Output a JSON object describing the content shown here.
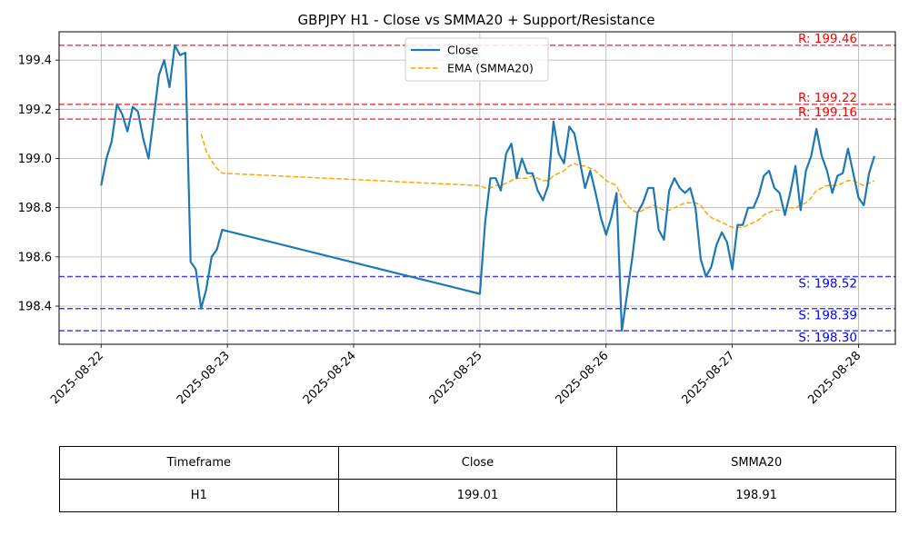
{
  "chart_data": {
    "type": "line",
    "title": "GBPJPY H1 - Close vs SMMA20 + Support/Resistance",
    "xlabel": "",
    "ylabel": "",
    "x_ticks": [
      "2025-08-22",
      "2025-08-23",
      "2025-08-24",
      "2025-08-25",
      "2025-08-26",
      "2025-08-27",
      "2025-08-28"
    ],
    "y_ticks": [
      198.4,
      198.6,
      198.8,
      199.0,
      199.2,
      199.4
    ],
    "xlim": [
      "2025-08-21 16:00",
      "2025-08-28 07:00"
    ],
    "ylim": [
      198.245,
      199.515
    ],
    "grid": true,
    "legend_position": "top-center",
    "colors": {
      "close": "#1f77b4",
      "ema": "#ffa500",
      "resistance": "#ff0000",
      "support": "#0000ff"
    },
    "series": [
      {
        "name": "Close",
        "style": "solid",
        "points": [
          [
            "2025-08-22 00:00",
            198.89
          ],
          [
            "2025-08-22 01:00",
            199.0
          ],
          [
            "2025-08-22 02:00",
            199.07
          ],
          [
            "2025-08-22 03:00",
            199.22
          ],
          [
            "2025-08-22 04:00",
            199.18
          ],
          [
            "2025-08-22 05:00",
            199.11
          ],
          [
            "2025-08-22 06:00",
            199.21
          ],
          [
            "2025-08-22 07:00",
            199.19
          ],
          [
            "2025-08-22 08:00",
            199.08
          ],
          [
            "2025-08-22 09:00",
            199.0
          ],
          [
            "2025-08-22 10:00",
            199.17
          ],
          [
            "2025-08-22 11:00",
            199.34
          ],
          [
            "2025-08-22 12:00",
            199.4
          ],
          [
            "2025-08-22 13:00",
            199.29
          ],
          [
            "2025-08-22 14:00",
            199.46
          ],
          [
            "2025-08-22 15:00",
            199.42
          ],
          [
            "2025-08-22 16:00",
            199.43
          ],
          [
            "2025-08-22 17:00",
            198.58
          ],
          [
            "2025-08-22 18:00",
            198.55
          ],
          [
            "2025-08-22 19:00",
            198.39
          ],
          [
            "2025-08-22 20:00",
            198.47
          ],
          [
            "2025-08-22 21:00",
            198.6
          ],
          [
            "2025-08-22 22:00",
            198.63
          ],
          [
            "2025-08-22 23:00",
            198.71
          ],
          [
            "2025-08-25 00:00",
            198.45
          ],
          [
            "2025-08-25 01:00",
            198.74
          ],
          [
            "2025-08-25 02:00",
            198.92
          ],
          [
            "2025-08-25 03:00",
            198.92
          ],
          [
            "2025-08-25 04:00",
            198.87
          ],
          [
            "2025-08-25 05:00",
            199.02
          ],
          [
            "2025-08-25 06:00",
            199.06
          ],
          [
            "2025-08-25 07:00",
            198.92
          ],
          [
            "2025-08-25 08:00",
            199.0
          ],
          [
            "2025-08-25 09:00",
            198.94
          ],
          [
            "2025-08-25 10:00",
            198.94
          ],
          [
            "2025-08-25 11:00",
            198.87
          ],
          [
            "2025-08-25 12:00",
            198.83
          ],
          [
            "2025-08-25 13:00",
            198.89
          ],
          [
            "2025-08-25 14:00",
            199.15
          ],
          [
            "2025-08-25 15:00",
            199.02
          ],
          [
            "2025-08-25 16:00",
            198.98
          ],
          [
            "2025-08-25 17:00",
            199.13
          ],
          [
            "2025-08-25 18:00",
            199.1
          ],
          [
            "2025-08-25 19:00",
            198.99
          ],
          [
            "2025-08-25 20:00",
            198.88
          ],
          [
            "2025-08-25 21:00",
            198.95
          ],
          [
            "2025-08-25 22:00",
            198.86
          ],
          [
            "2025-08-25 23:00",
            198.76
          ],
          [
            "2025-08-26 00:00",
            198.69
          ],
          [
            "2025-08-26 01:00",
            198.76
          ],
          [
            "2025-08-26 02:00",
            198.86
          ],
          [
            "2025-08-26 03:00",
            198.3
          ],
          [
            "2025-08-26 04:00",
            198.45
          ],
          [
            "2025-08-26 05:00",
            198.6
          ],
          [
            "2025-08-26 06:00",
            198.78
          ],
          [
            "2025-08-26 07:00",
            198.82
          ],
          [
            "2025-08-26 08:00",
            198.88
          ],
          [
            "2025-08-26 09:00",
            198.88
          ],
          [
            "2025-08-26 10:00",
            198.71
          ],
          [
            "2025-08-26 11:00",
            198.67
          ],
          [
            "2025-08-26 12:00",
            198.87
          ],
          [
            "2025-08-26 13:00",
            198.92
          ],
          [
            "2025-08-26 14:00",
            198.88
          ],
          [
            "2025-08-26 15:00",
            198.86
          ],
          [
            "2025-08-26 16:00",
            198.88
          ],
          [
            "2025-08-26 17:00",
            198.8
          ],
          [
            "2025-08-26 18:00",
            198.59
          ],
          [
            "2025-08-26 19:00",
            198.52
          ],
          [
            "2025-08-26 20:00",
            198.56
          ],
          [
            "2025-08-26 21:00",
            198.65
          ],
          [
            "2025-08-26 22:00",
            198.7
          ],
          [
            "2025-08-26 23:00",
            198.66
          ],
          [
            "2025-08-27 00:00",
            198.55
          ],
          [
            "2025-08-27 01:00",
            198.73
          ],
          [
            "2025-08-27 02:00",
            198.73
          ],
          [
            "2025-08-27 03:00",
            198.8
          ],
          [
            "2025-08-27 04:00",
            198.8
          ],
          [
            "2025-08-27 05:00",
            198.85
          ],
          [
            "2025-08-27 06:00",
            198.93
          ],
          [
            "2025-08-27 07:00",
            198.95
          ],
          [
            "2025-08-27 08:00",
            198.88
          ],
          [
            "2025-08-27 09:00",
            198.86
          ],
          [
            "2025-08-27 10:00",
            198.77
          ],
          [
            "2025-08-27 11:00",
            198.86
          ],
          [
            "2025-08-27 12:00",
            198.97
          ],
          [
            "2025-08-27 13:00",
            198.79
          ],
          [
            "2025-08-27 14:00",
            198.95
          ],
          [
            "2025-08-27 15:00",
            199.01
          ],
          [
            "2025-08-27 16:00",
            199.12
          ],
          [
            "2025-08-27 17:00",
            199.01
          ],
          [
            "2025-08-27 18:00",
            198.95
          ],
          [
            "2025-08-27 19:00",
            198.86
          ],
          [
            "2025-08-27 20:00",
            198.93
          ],
          [
            "2025-08-27 21:00",
            198.94
          ],
          [
            "2025-08-27 22:00",
            199.04
          ],
          [
            "2025-08-27 23:00",
            198.94
          ],
          [
            "2025-08-28 00:00",
            198.84
          ],
          [
            "2025-08-28 01:00",
            198.81
          ],
          [
            "2025-08-28 02:00",
            198.94
          ],
          [
            "2025-08-28 03:00",
            199.01
          ]
        ]
      },
      {
        "name": "EMA (SMMA20)",
        "style": "dashed",
        "points": [
          [
            "2025-08-22 19:00",
            199.1
          ],
          [
            "2025-08-22 20:00",
            199.03
          ],
          [
            "2025-08-22 21:00",
            198.99
          ],
          [
            "2025-08-22 22:00",
            198.96
          ],
          [
            "2025-08-22 23:00",
            198.94
          ],
          [
            "2025-08-25 00:00",
            198.89
          ],
          [
            "2025-08-25 01:00",
            198.88
          ],
          [
            "2025-08-25 02:00",
            198.88
          ],
          [
            "2025-08-25 03:00",
            198.89
          ],
          [
            "2025-08-25 04:00",
            198.89
          ],
          [
            "2025-08-25 05:00",
            198.9
          ],
          [
            "2025-08-25 06:00",
            198.91
          ],
          [
            "2025-08-25 07:00",
            198.92
          ],
          [
            "2025-08-25 08:00",
            198.92
          ],
          [
            "2025-08-25 09:00",
            198.92
          ],
          [
            "2025-08-25 10:00",
            198.93
          ],
          [
            "2025-08-25 11:00",
            198.92
          ],
          [
            "2025-08-25 12:00",
            198.91
          ],
          [
            "2025-08-25 13:00",
            198.91
          ],
          [
            "2025-08-25 14:00",
            198.93
          ],
          [
            "2025-08-25 15:00",
            198.94
          ],
          [
            "2025-08-25 16:00",
            198.95
          ],
          [
            "2025-08-25 17:00",
            198.97
          ],
          [
            "2025-08-25 18:00",
            198.98
          ],
          [
            "2025-08-25 19:00",
            198.97
          ],
          [
            "2025-08-25 20:00",
            198.97
          ],
          [
            "2025-08-25 21:00",
            198.96
          ],
          [
            "2025-08-25 22:00",
            198.95
          ],
          [
            "2025-08-25 23:00",
            198.93
          ],
          [
            "2025-08-26 00:00",
            198.91
          ],
          [
            "2025-08-26 01:00",
            198.9
          ],
          [
            "2025-08-26 02:00",
            198.89
          ],
          [
            "2025-08-26 03:00",
            198.84
          ],
          [
            "2025-08-26 04:00",
            198.81
          ],
          [
            "2025-08-26 05:00",
            198.79
          ],
          [
            "2025-08-26 06:00",
            198.78
          ],
          [
            "2025-08-26 07:00",
            198.79
          ],
          [
            "2025-08-26 08:00",
            198.8
          ],
          [
            "2025-08-26 09:00",
            198.81
          ],
          [
            "2025-08-26 10:00",
            198.8
          ],
          [
            "2025-08-26 11:00",
            198.79
          ],
          [
            "2025-08-26 12:00",
            198.79
          ],
          [
            "2025-08-26 13:00",
            198.8
          ],
          [
            "2025-08-26 14:00",
            198.81
          ],
          [
            "2025-08-26 15:00",
            198.82
          ],
          [
            "2025-08-26 16:00",
            198.82
          ],
          [
            "2025-08-26 17:00",
            198.82
          ],
          [
            "2025-08-26 18:00",
            198.81
          ],
          [
            "2025-08-26 19:00",
            198.78
          ],
          [
            "2025-08-26 20:00",
            198.76
          ],
          [
            "2025-08-26 21:00",
            198.75
          ],
          [
            "2025-08-26 22:00",
            198.74
          ],
          [
            "2025-08-26 23:00",
            198.73
          ],
          [
            "2025-08-27 00:00",
            198.72
          ],
          [
            "2025-08-27 01:00",
            198.72
          ],
          [
            "2025-08-27 02:00",
            198.72
          ],
          [
            "2025-08-27 03:00",
            198.73
          ],
          [
            "2025-08-27 04:00",
            198.74
          ],
          [
            "2025-08-27 05:00",
            198.75
          ],
          [
            "2025-08-27 06:00",
            198.77
          ],
          [
            "2025-08-27 07:00",
            198.78
          ],
          [
            "2025-08-27 08:00",
            198.79
          ],
          [
            "2025-08-27 09:00",
            198.79
          ],
          [
            "2025-08-27 10:00",
            198.79
          ],
          [
            "2025-08-27 11:00",
            198.8
          ],
          [
            "2025-08-27 12:00",
            198.8
          ],
          [
            "2025-08-27 13:00",
            198.81
          ],
          [
            "2025-08-27 14:00",
            198.82
          ],
          [
            "2025-08-27 15:00",
            198.84
          ],
          [
            "2025-08-27 16:00",
            198.87
          ],
          [
            "2025-08-27 17:00",
            198.88
          ],
          [
            "2025-08-27 18:00",
            198.89
          ],
          [
            "2025-08-27 19:00",
            198.89
          ],
          [
            "2025-08-27 20:00",
            198.89
          ],
          [
            "2025-08-27 21:00",
            198.9
          ],
          [
            "2025-08-27 22:00",
            198.91
          ],
          [
            "2025-08-27 23:00",
            198.91
          ],
          [
            "2025-08-28 00:00",
            198.9
          ],
          [
            "2025-08-28 01:00",
            198.89
          ],
          [
            "2025-08-28 02:00",
            198.9
          ],
          [
            "2025-08-28 03:00",
            198.91
          ]
        ]
      }
    ],
    "resistance_levels": [
      {
        "value": 199.46,
        "label": "R: 199.46"
      },
      {
        "value": 199.22,
        "label": "R: 199.22"
      },
      {
        "value": 199.16,
        "label": "R: 199.16"
      }
    ],
    "support_levels": [
      {
        "value": 198.52,
        "label": "S: 198.52"
      },
      {
        "value": 198.39,
        "label": "S: 198.39"
      },
      {
        "value": 198.3,
        "label": "S: 198.30"
      }
    ]
  },
  "table": {
    "headers": [
      "Timeframe",
      "Close",
      "SMMA20"
    ],
    "rows": [
      [
        "H1",
        "199.01",
        "198.91"
      ]
    ]
  }
}
